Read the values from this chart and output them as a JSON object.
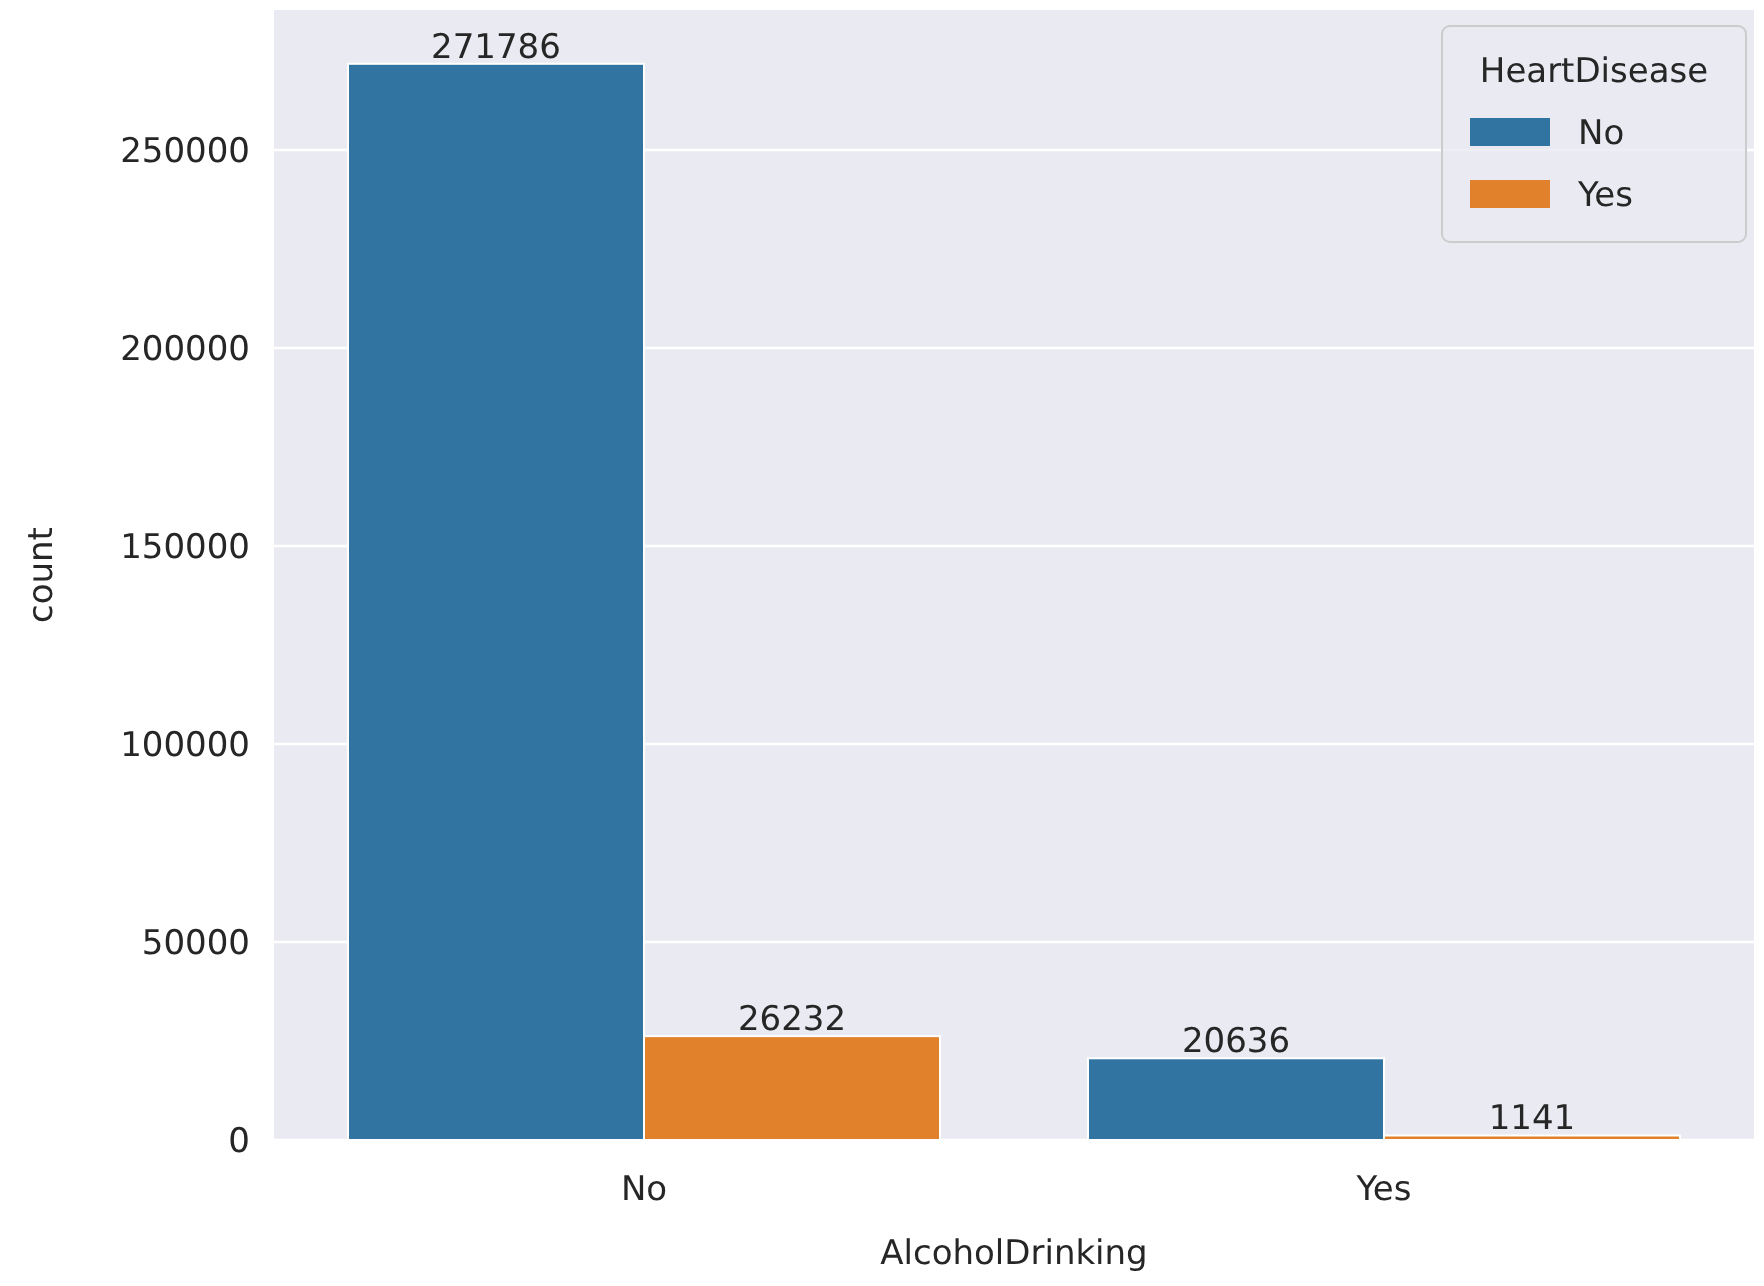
{
  "chart_data": {
    "type": "bar",
    "xlabel": "AlcoholDrinking",
    "ylabel": "count",
    "categories": [
      "No",
      "Yes"
    ],
    "legend_title": "HeartDisease",
    "series": [
      {
        "name": "No",
        "color": "#3274a1",
        "values": [
          271786,
          20636
        ]
      },
      {
        "name": "Yes",
        "color": "#e1812c",
        "values": [
          26232,
          1141
        ]
      }
    ],
    "ylim": [
      0,
      285375
    ],
    "yticks": [
      0,
      50000,
      100000,
      150000,
      200000,
      250000
    ],
    "grid": "y",
    "legend": "top right",
    "data_labels": true
  }
}
